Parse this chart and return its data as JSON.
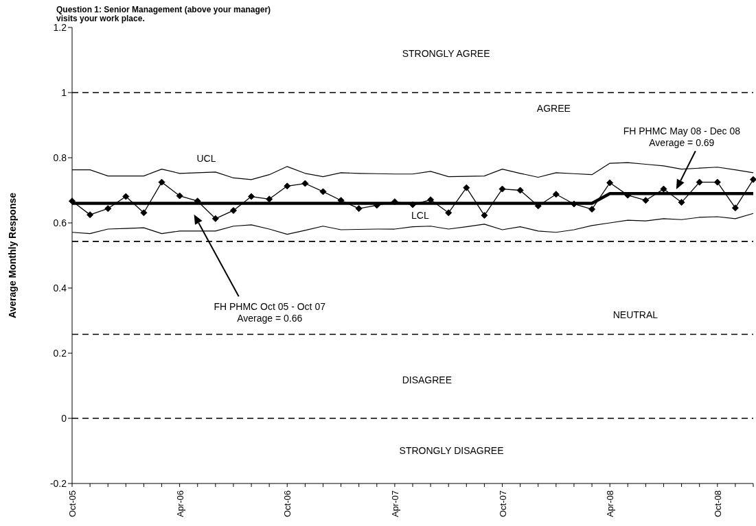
{
  "chart_data": {
    "type": "line",
    "title": "Question 1:  Senior Management (above your manager) visits your work place.",
    "ylabel": "Average Monthly Response",
    "categories": [
      "Oct-05",
      null,
      null,
      null,
      null,
      null,
      "Apr-06",
      null,
      null,
      null,
      null,
      null,
      "Oct-06",
      null,
      null,
      null,
      null,
      null,
      "Apr-07",
      null,
      null,
      null,
      null,
      null,
      "Oct-07",
      null,
      null,
      null,
      null,
      null,
      "Apr-08",
      null,
      null,
      null,
      null,
      null,
      "Oct-08",
      null,
      null
    ],
    "series": [
      {
        "color": "#000000",
        "marker": "diamond",
        "values": [
          0.667,
          0.625,
          0.644,
          0.681,
          0.631,
          0.725,
          0.683,
          0.667,
          0.613,
          0.638,
          0.681,
          0.673,
          0.713,
          0.721,
          0.696,
          0.669,
          0.644,
          0.654,
          0.665,
          0.656,
          0.671,
          0.631,
          0.708,
          0.623,
          0.704,
          0.7,
          0.652,
          0.688,
          0.658,
          0.642,
          0.723,
          0.685,
          0.669,
          0.704,
          0.663,
          0.725,
          0.725,
          0.646,
          0.733
        ]
      },
      {
        "name": "UCL",
        "color": "#000000",
        "values": [
          0.763,
          0.763,
          0.744,
          0.744,
          0.744,
          0.765,
          0.752,
          0.754,
          0.756,
          0.738,
          0.733,
          0.748,
          0.773,
          0.752,
          0.742,
          0.754,
          0.752,
          0.751,
          0.75,
          0.75,
          0.758,
          0.742,
          0.743,
          0.744,
          0.765,
          0.752,
          0.74,
          0.754,
          0.751,
          0.748,
          0.783,
          0.785,
          0.78,
          0.775,
          0.765,
          0.768,
          0.771,
          0.763,
          0.754
        ]
      },
      {
        "name": "LCL",
        "color": "#000000",
        "values": [
          0.571,
          0.567,
          0.581,
          0.583,
          0.585,
          0.567,
          0.575,
          0.575,
          0.575,
          0.59,
          0.594,
          0.581,
          0.565,
          0.577,
          0.59,
          0.579,
          0.58,
          0.581,
          0.581,
          0.588,
          0.59,
          0.581,
          0.588,
          0.596,
          0.579,
          0.588,
          0.575,
          0.571,
          0.579,
          0.592,
          0.6,
          0.608,
          0.606,
          0.613,
          0.61,
          0.617,
          0.619,
          0.613,
          0.629
        ]
      },
      {
        "color": "#000000",
        "values": [
          0.66,
          0.66,
          0.66,
          0.66,
          0.66,
          0.66,
          0.66,
          0.66,
          0.66,
          0.66,
          0.66,
          0.66,
          0.66,
          0.66,
          0.66,
          0.66,
          0.66,
          0.66,
          0.66,
          0.66,
          0.66,
          0.66,
          0.66,
          0.66,
          0.66,
          0.66,
          0.66,
          0.66,
          0.66,
          0.66,
          0.69,
          0.69,
          0.69,
          0.69,
          0.69,
          0.69,
          0.69,
          0.69,
          0.69
        ]
      }
    ],
    "ylim": [
      -0.2,
      1.2
    ],
    "yticks": [
      -0.2,
      0,
      0.2,
      0.4,
      0.6,
      0.8,
      1,
      1.2
    ],
    "ref_lines": [
      {
        "axis": "y",
        "value": 1,
        "line_style": "dashed",
        "color": "#000000"
      },
      {
        "axis": "y",
        "value": 0.543,
        "line_style": "dashed",
        "color": "#000000"
      },
      {
        "axis": "y",
        "value": 0.258,
        "line_style": "dashed",
        "color": "#000000"
      },
      {
        "axis": "y",
        "value": 0,
        "line_style": "dashed",
        "color": "#000000"
      }
    ],
    "annotations": [
      "STRONGLY AGREE",
      "AGREE",
      "NEUTRAL",
      "DISAGREE",
      "STRONGLY DISAGREE",
      "FH PHMC Oct 05 - Oct 07\nAverage = 0.66",
      "FH PHMC May 08 - Dec 08\nAverage = 0.69"
    ]
  }
}
